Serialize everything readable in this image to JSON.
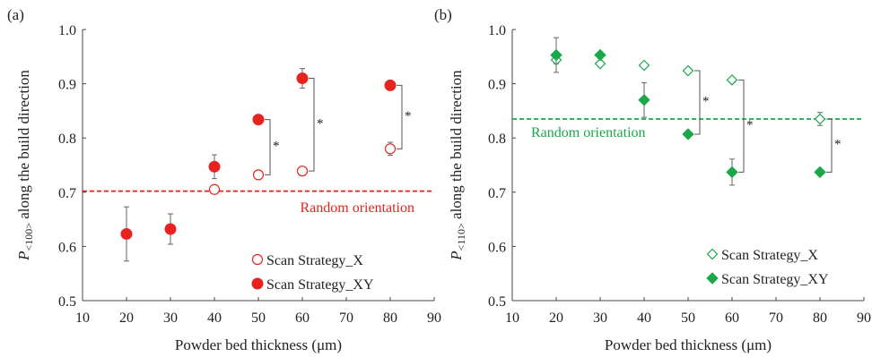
{
  "chart_data": [
    {
      "type": "scatter",
      "panel_label": "(a)",
      "xlabel": "Powder bed thickness (μm)",
      "ylabel_prefix": "P",
      "ylabel_sub": "<100>",
      "ylabel_rest": " along the build direction",
      "xlim": [
        10,
        90
      ],
      "ylim": [
        0.5,
        1.0
      ],
      "xticks": [
        "10",
        "20",
        "30",
        "40",
        "50",
        "60",
        "70",
        "80",
        "90"
      ],
      "yticks": [
        "0.5",
        "0.6",
        "0.7",
        "0.8",
        "0.9",
        "1.0"
      ],
      "reference_line": {
        "y": 0.702,
        "label": "Random orientation",
        "color": "#e8231f"
      },
      "series": [
        {
          "name": "Scan Strategy_X",
          "marker": "circle-open",
          "color": "#e8231f",
          "points": [
            {
              "x": 40,
              "y": 0.705,
              "err": 0.005
            },
            {
              "x": 50,
              "y": 0.732,
              "err": 0.005
            },
            {
              "x": 60,
              "y": 0.739,
              "err": 0.004
            },
            {
              "x": 80,
              "y": 0.78,
              "err": 0.012
            }
          ]
        },
        {
          "name": "Scan Strategy_XY",
          "marker": "circle-filled",
          "color": "#e8231f",
          "points": [
            {
              "x": 20,
              "y": 0.623,
              "err": 0.05
            },
            {
              "x": 30,
              "y": 0.632,
              "err": 0.028
            },
            {
              "x": 40,
              "y": 0.747,
              "err": 0.022
            },
            {
              "x": 50,
              "y": 0.834,
              "err": 0.004
            },
            {
              "x": 60,
              "y": 0.91,
              "err": 0.018
            },
            {
              "x": 80,
              "y": 0.897,
              "err": 0.004
            }
          ]
        }
      ],
      "significance": [
        {
          "x": 50,
          "y_low": 0.732,
          "y_high": 0.834,
          "label": "*"
        },
        {
          "x": 60,
          "y_low": 0.739,
          "y_high": 0.91,
          "label": "*"
        },
        {
          "x": 80,
          "y_low": 0.78,
          "y_high": 0.897,
          "label": "*"
        }
      ],
      "legend": "bottom-right"
    },
    {
      "type": "scatter",
      "panel_label": "(b)",
      "xlabel": "Powder bed thickness (μm)",
      "ylabel_prefix": "P",
      "ylabel_sub": "<110>",
      "ylabel_rest": " along the build direction",
      "xlim": [
        10,
        90
      ],
      "ylim": [
        0.5,
        1.0
      ],
      "xticks": [
        "10",
        "20",
        "30",
        "40",
        "50",
        "60",
        "70",
        "80",
        "90"
      ],
      "yticks": [
        "0.5",
        "0.6",
        "0.7",
        "0.8",
        "0.9",
        "1.0"
      ],
      "reference_line": {
        "y": 0.835,
        "label": "Random orientation",
        "color": "#1aa84b"
      },
      "series": [
        {
          "name": "Scan Strategy_X",
          "marker": "diamond-open",
          "color": "#1aa84b",
          "points": [
            {
              "x": 20,
              "y": 0.944,
              "err": 0.007
            },
            {
              "x": 30,
              "y": 0.937,
              "err": 0.004
            },
            {
              "x": 40,
              "y": 0.934,
              "err": 0.004
            },
            {
              "x": 50,
              "y": 0.924,
              "err": 0.004
            },
            {
              "x": 60,
              "y": 0.907,
              "err": 0.004
            },
            {
              "x": 80,
              "y": 0.835,
              "err": 0.012
            }
          ]
        },
        {
          "name": "Scan Strategy_XY",
          "marker": "diamond-filled",
          "color": "#1aa84b",
          "points": [
            {
              "x": 20,
              "y": 0.953,
              "err": 0.032
            },
            {
              "x": 30,
              "y": 0.953,
              "err": 0.004
            },
            {
              "x": 40,
              "y": 0.87,
              "err": 0.032
            },
            {
              "x": 50,
              "y": 0.807,
              "err": 0.004
            },
            {
              "x": 60,
              "y": 0.737,
              "err": 0.024
            },
            {
              "x": 80,
              "y": 0.737,
              "err": 0.004
            }
          ]
        }
      ],
      "significance": [
        {
          "x": 50,
          "y_low": 0.807,
          "y_high": 0.924,
          "label": "*"
        },
        {
          "x": 60,
          "y_low": 0.737,
          "y_high": 0.907,
          "label": "*"
        },
        {
          "x": 80,
          "y_low": 0.737,
          "y_high": 0.835,
          "label": "*"
        }
      ],
      "legend": "bottom-right"
    }
  ]
}
